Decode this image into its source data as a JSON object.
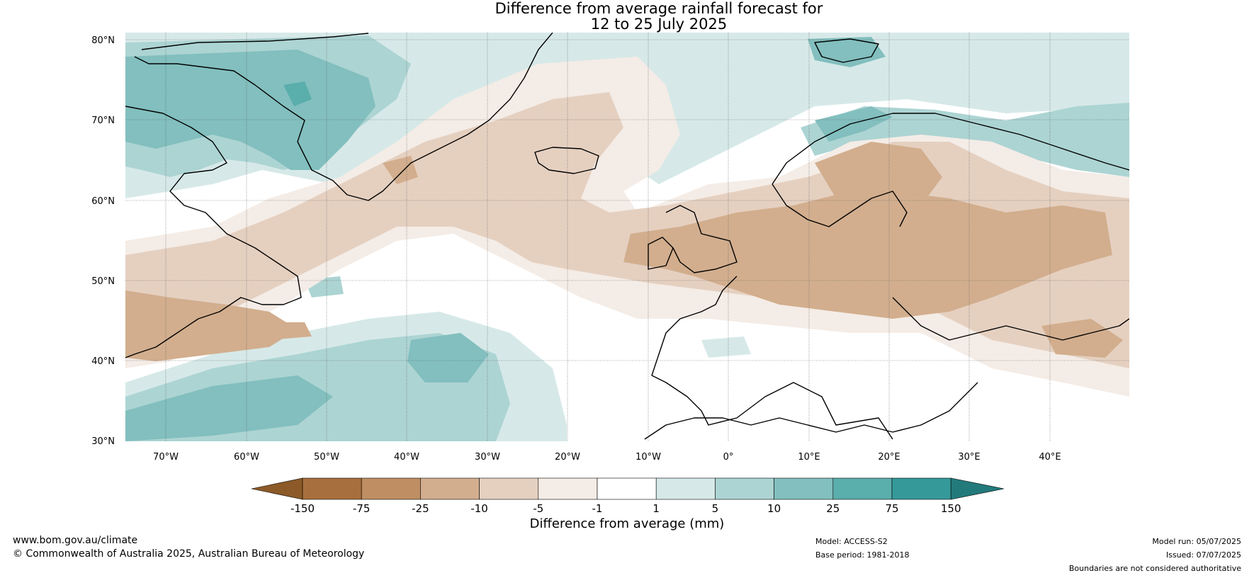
{
  "title": {
    "line1": "Difference from average rainfall forecast for",
    "line2": "12 to 25 July 2025"
  },
  "map": {
    "lat_labels": [
      "80°N",
      "70°N",
      "60°N",
      "50°N",
      "40°N",
      "30°N"
    ],
    "lon_labels": [
      "70°W",
      "60°W",
      "50°W",
      "40°W",
      "30°W",
      "20°W",
      "10°W",
      "0°",
      "10°E",
      "20°E",
      "30°E",
      "40°E"
    ],
    "ocean_background": "#ffffff"
  },
  "colorbar": {
    "title": "Difference from average (mm)",
    "tick_labels": [
      "-150",
      "-75",
      "-25",
      "-10",
      "-5",
      "-1",
      "1",
      "5",
      "10",
      "25",
      "75",
      "150"
    ],
    "colors": {
      "below_min": "#8c5a28",
      "bins": [
        "#a86f3e",
        "#bf8e62",
        "#d2ae8e",
        "#e5d0c0",
        "#f4ece6",
        "#ffffff",
        "#d6e9e8",
        "#acd4d3",
        "#82bfbe",
        "#5aaeac",
        "#35999a"
      ],
      "above_max": "#237a7b"
    }
  },
  "footer": {
    "url": "www.bom.gov.au/climate",
    "copyright": "© Commonwealth of Australia 2025, Australian Bureau of Meteorology",
    "model": "Model: ACCESS-S2",
    "base_period": "Base period: 1981-2018",
    "model_run": "Model run: 05/07/2025",
    "issued": "Issued: 07/07/2025",
    "disclaimer": "Boundaries are not considered authoritative"
  }
}
